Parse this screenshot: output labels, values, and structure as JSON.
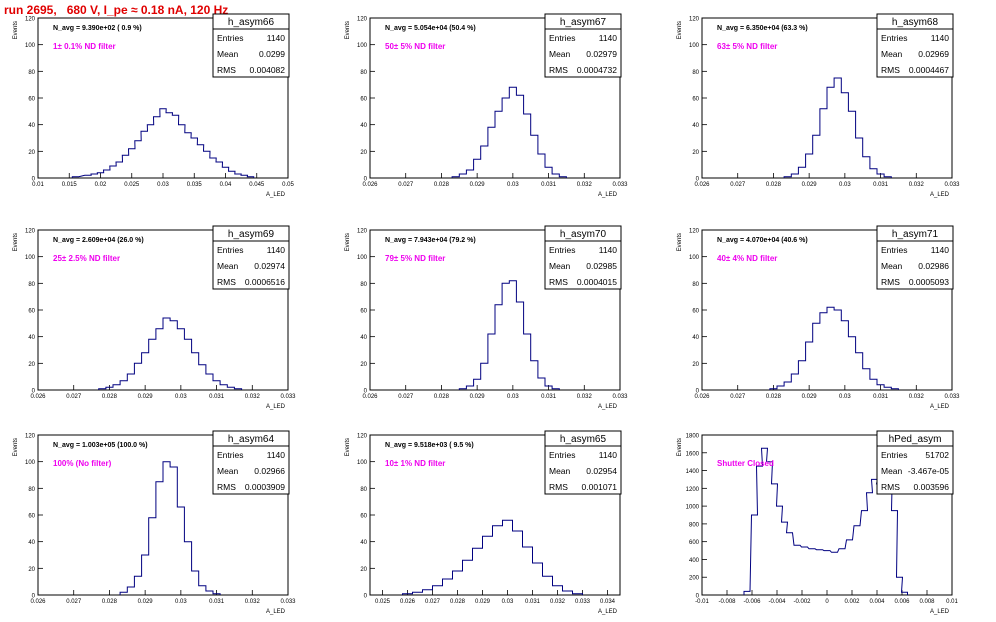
{
  "page": {
    "title": "run 2695,   680 V, I_pe ≈ 0.18 nA, 120 Hz"
  },
  "colors": {
    "histogram": "#000080",
    "annotation": "#ee00ee",
    "title": "#e00000",
    "axis": "#000000"
  },
  "chart_data": [
    {
      "type": "histogram",
      "name": "h_asym66",
      "navg": "N_avg = 9.390e+02 ( 0.9 %)",
      "filter": "1± 0.1% ND filter",
      "stats": {
        "entries": "1140",
        "mean": "0.0299",
        "rms": "0.004082"
      },
      "xlabel": "A_LED",
      "ylabel": "Events",
      "xlim": [
        0.01,
        0.05
      ],
      "ylim": [
        0,
        120
      ],
      "x_ticks": [
        "0.01",
        "0.015",
        "0.02",
        "0.025",
        "0.03",
        "0.035",
        "0.04",
        "0.045",
        "0.05"
      ],
      "y_ticks": [
        "0",
        "20",
        "40",
        "60",
        "80",
        "100",
        "120"
      ],
      "x": [
        0.016,
        0.018,
        0.019,
        0.02,
        0.021,
        0.022,
        0.023,
        0.024,
        0.025,
        0.026,
        0.027,
        0.028,
        0.029,
        0.03,
        0.031,
        0.032,
        0.033,
        0.034,
        0.035,
        0.036,
        0.037,
        0.038,
        0.039,
        0.04,
        0.041,
        0.042,
        0.043,
        0.044
      ],
      "values": [
        1,
        2,
        3,
        4,
        6,
        9,
        12,
        17,
        22,
        28,
        35,
        40,
        46,
        52,
        49,
        47,
        40,
        34,
        30,
        25,
        20,
        15,
        12,
        8,
        5,
        3,
        2,
        1
      ]
    },
    {
      "type": "histogram",
      "name": "h_asym67",
      "navg": "N_avg = 5.054e+04 (50.4 %)",
      "filter": "50± 5% ND filter",
      "stats": {
        "entries": "1140",
        "mean": "0.02979",
        "rms": "0.0004732"
      },
      "xlabel": "A_LED",
      "ylabel": "Events",
      "xlim": [
        0.026,
        0.033
      ],
      "ylim": [
        0,
        120
      ],
      "x_ticks": [
        "0.026",
        "0.027",
        "0.028",
        "0.029",
        "0.03",
        "0.031",
        "0.032",
        "0.033"
      ],
      "y_ticks": [
        "0",
        "20",
        "40",
        "60",
        "80",
        "100",
        "120"
      ],
      "x": [
        0.0284,
        0.0286,
        0.0288,
        0.029,
        0.0292,
        0.0294,
        0.0296,
        0.0298,
        0.03,
        0.0302,
        0.0304,
        0.0306,
        0.0308,
        0.031,
        0.0312,
        0.0314
      ],
      "values": [
        1,
        3,
        6,
        14,
        24,
        38,
        50,
        60,
        68,
        62,
        48,
        32,
        18,
        8,
        3,
        1
      ]
    },
    {
      "type": "histogram",
      "name": "h_asym68",
      "navg": "N_avg = 6.350e+04 (63.3 %)",
      "filter": "63± 5% ND filter",
      "stats": {
        "entries": "1140",
        "mean": "0.02969",
        "rms": "0.0004467"
      },
      "xlabel": "A_LED",
      "ylabel": "Events",
      "xlim": [
        0.026,
        0.033
      ],
      "ylim": [
        0,
        120
      ],
      "x_ticks": [
        "0.026",
        "0.027",
        "0.028",
        "0.029",
        "0.03",
        "0.031",
        "0.032",
        "0.033"
      ],
      "y_ticks": [
        "0",
        "20",
        "40",
        "60",
        "80",
        "100",
        "120"
      ],
      "x": [
        0.0284,
        0.0286,
        0.0288,
        0.029,
        0.0292,
        0.0294,
        0.0296,
        0.0298,
        0.03,
        0.0302,
        0.0304,
        0.0306,
        0.0308,
        0.031,
        0.0312
      ],
      "values": [
        1,
        3,
        8,
        18,
        32,
        52,
        68,
        75,
        64,
        50,
        30,
        16,
        7,
        3,
        1
      ]
    },
    {
      "type": "histogram",
      "name": "h_asym69",
      "navg": "N_avg = 2.609e+04 (26.0 %)",
      "filter": "25± 2.5% ND filter",
      "stats": {
        "entries": "1140",
        "mean": "0.02974",
        "rms": "0.0006516"
      },
      "xlabel": "A_LED",
      "ylabel": "Events",
      "xlim": [
        0.026,
        0.033
      ],
      "ylim": [
        0,
        120
      ],
      "x_ticks": [
        "0.026",
        "0.027",
        "0.028",
        "0.029",
        "0.03",
        "0.031",
        "0.032",
        "0.033"
      ],
      "y_ticks": [
        "0",
        "20",
        "40",
        "60",
        "80",
        "100",
        "120"
      ],
      "x": [
        0.0278,
        0.028,
        0.0282,
        0.0284,
        0.0286,
        0.0288,
        0.029,
        0.0292,
        0.0294,
        0.0296,
        0.0298,
        0.03,
        0.0302,
        0.0304,
        0.0306,
        0.0308,
        0.031,
        0.0312,
        0.0314,
        0.0316
      ],
      "values": [
        1,
        2,
        4,
        7,
        12,
        20,
        28,
        38,
        46,
        54,
        52,
        46,
        38,
        28,
        19,
        12,
        7,
        4,
        2,
        1
      ]
    },
    {
      "type": "histogram",
      "name": "h_asym70",
      "navg": "N_avg = 7.943e+04 (79.2 %)",
      "filter": "79± 5% ND filter",
      "stats": {
        "entries": "1140",
        "mean": "0.02985",
        "rms": "0.0004015"
      },
      "xlabel": "A_LED",
      "ylabel": "Events",
      "xlim": [
        0.026,
        0.033
      ],
      "ylim": [
        0,
        120
      ],
      "x_ticks": [
        "0.026",
        "0.027",
        "0.028",
        "0.029",
        "0.03",
        "0.031",
        "0.032",
        "0.033"
      ],
      "y_ticks": [
        "0",
        "20",
        "40",
        "60",
        "80",
        "100",
        "120"
      ],
      "x": [
        0.0286,
        0.0288,
        0.029,
        0.0292,
        0.0294,
        0.0296,
        0.0298,
        0.03,
        0.0302,
        0.0304,
        0.0306,
        0.0308,
        0.031,
        0.0312
      ],
      "values": [
        1,
        3,
        8,
        20,
        42,
        64,
        80,
        82,
        66,
        42,
        22,
        9,
        3,
        1
      ]
    },
    {
      "type": "histogram",
      "name": "h_asym71",
      "navg": "N_avg = 4.070e+04 (40.6 %)",
      "filter": "40± 4% ND filter",
      "stats": {
        "entries": "1140",
        "mean": "0.02986",
        "rms": "0.0005093"
      },
      "xlabel": "A_LED",
      "ylabel": "Events",
      "xlim": [
        0.026,
        0.033
      ],
      "ylim": [
        0,
        120
      ],
      "x_ticks": [
        "0.026",
        "0.027",
        "0.028",
        "0.029",
        "0.03",
        "0.031",
        "0.032",
        "0.033"
      ],
      "y_ticks": [
        "0",
        "20",
        "40",
        "60",
        "80",
        "100",
        "120"
      ],
      "x": [
        0.028,
        0.0282,
        0.0284,
        0.0286,
        0.0288,
        0.029,
        0.0292,
        0.0294,
        0.0296,
        0.0298,
        0.03,
        0.0302,
        0.0304,
        0.0306,
        0.0308,
        0.031,
        0.0312,
        0.0314
      ],
      "values": [
        1,
        3,
        6,
        12,
        22,
        36,
        50,
        58,
        62,
        60,
        52,
        40,
        28,
        16,
        8,
        4,
        2,
        1
      ]
    },
    {
      "type": "histogram",
      "name": "h_asym64",
      "navg": "N_avg = 1.003e+05 (100.0 %)",
      "filter": "100% (No filter)",
      "stats": {
        "entries": "1140",
        "mean": "0.02966",
        "rms": "0.0003909"
      },
      "xlabel": "A_LED",
      "ylabel": "Events",
      "xlim": [
        0.026,
        0.033
      ],
      "ylim": [
        0,
        120
      ],
      "x_ticks": [
        "0.026",
        "0.027",
        "0.028",
        "0.029",
        "0.03",
        "0.031",
        "0.032",
        "0.033"
      ],
      "y_ticks": [
        "0",
        "20",
        "40",
        "60",
        "80",
        "100",
        "120"
      ],
      "x": [
        0.0284,
        0.0286,
        0.0288,
        0.029,
        0.0292,
        0.0294,
        0.0296,
        0.0298,
        0.03,
        0.0302,
        0.0304,
        0.0306,
        0.0308,
        0.031
      ],
      "values": [
        2,
        6,
        14,
        30,
        58,
        85,
        100,
        96,
        66,
        40,
        18,
        7,
        3,
        1
      ]
    },
    {
      "type": "histogram",
      "name": "h_asym65",
      "navg": "N_avg = 9.518e+03 ( 9.5 %)",
      "filter": "10± 1% ND filter",
      "stats": {
        "entries": "1140",
        "mean": "0.02954",
        "rms": "0.001071"
      },
      "xlabel": "A_LED",
      "ylabel": "Events",
      "xlim": [
        0.0245,
        0.0345
      ],
      "ylim": [
        0,
        120
      ],
      "x_ticks": [
        "0.025",
        "0.026",
        "0.027",
        "0.028",
        "0.029",
        "0.03",
        "0.031",
        "0.032",
        "0.033",
        "0.034"
      ],
      "y_ticks": [
        "0",
        "20",
        "40",
        "60",
        "80",
        "100",
        "120"
      ],
      "x": [
        0.026,
        0.0264,
        0.0268,
        0.0272,
        0.0276,
        0.028,
        0.0284,
        0.0288,
        0.0292,
        0.0296,
        0.03,
        0.0304,
        0.0308,
        0.0312,
        0.0316,
        0.032,
        0.0324,
        0.0328
      ],
      "values": [
        1,
        2,
        4,
        7,
        12,
        18,
        26,
        35,
        44,
        52,
        56,
        48,
        36,
        24,
        14,
        7,
        3,
        1
      ]
    },
    {
      "type": "histogram",
      "name": "hPed_asym",
      "navg": "",
      "filter": "Shutter Closed",
      "stats": {
        "entries": "51702",
        "mean": "-3.467e-05",
        "rms": "0.003596"
      },
      "xlabel": "A_LED",
      "ylabel": "Events",
      "xlim": [
        -0.01,
        0.01
      ],
      "ylim": [
        0,
        1800
      ],
      "x_ticks": [
        "-0.01",
        "-0.008",
        "-0.006",
        "-0.004",
        "-0.002",
        "0",
        "0.002",
        "0.004",
        "0.006",
        "0.008",
        "0.01"
      ],
      "y_ticks": [
        "0",
        "200",
        "400",
        "600",
        "800",
        "1000",
        "1200",
        "1400",
        "1600",
        "1800"
      ],
      "x": [
        -0.0064,
        -0.0058,
        -0.0054,
        -0.005,
        -0.0046,
        -0.0042,
        -0.0038,
        -0.0034,
        -0.003,
        -0.0024,
        -0.0018,
        -0.0012,
        -0.0006,
        0,
        0.0006,
        0.0012,
        0.0018,
        0.0024,
        0.003,
        0.0034,
        0.0038,
        0.0042,
        0.0046,
        0.005,
        0.0054,
        0.0058,
        0.0062
      ],
      "values": [
        40,
        900,
        1450,
        1650,
        1500,
        1250,
        1000,
        820,
        700,
        560,
        540,
        520,
        510,
        500,
        480,
        520,
        620,
        780,
        950,
        1150,
        1300,
        1250,
        1200,
        1450,
        950,
        200,
        30
      ]
    }
  ]
}
